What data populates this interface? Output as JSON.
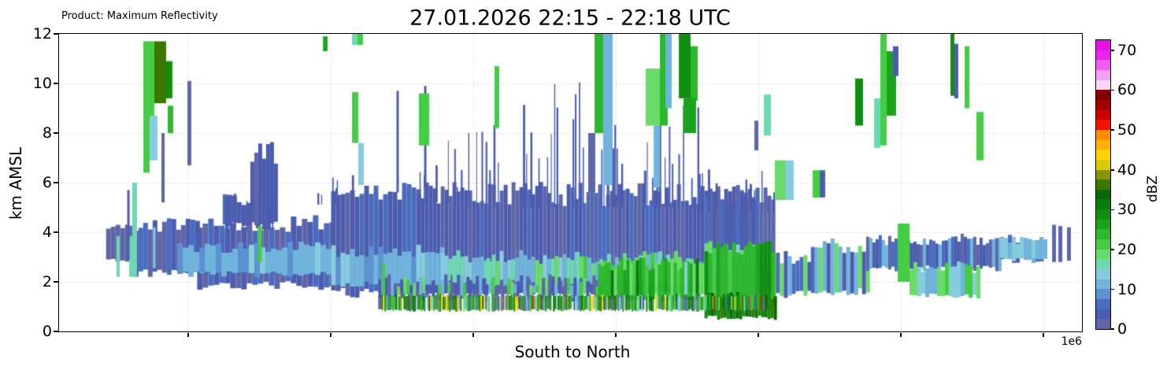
{
  "chart_data": {
    "type": "heatmap",
    "product": "Product: Maximum Reflectivity",
    "title": "27.01.2026 22:15 - 22:18 UTC",
    "xlabel": "South to North",
    "ylabel": "km AMSL",
    "x_offset_label": "1e6",
    "ylim": [
      0,
      12
    ],
    "yticks": [
      0,
      2,
      4,
      6,
      8,
      10,
      12
    ],
    "ygrid": [
      2,
      4,
      6,
      8,
      10
    ],
    "x_gridlines": [
      0.1263,
      0.2656,
      0.4049,
      0.5443,
      0.6836,
      0.8229,
      0.9623
    ],
    "grid_color": "#c9c9c9",
    "seed": 20260127,
    "colorbar": {
      "label": "dBZ",
      "ticks": [
        0,
        10,
        20,
        30,
        40,
        50,
        60,
        70
      ],
      "vmin": 0,
      "vmax": 72.5,
      "step": 2.5,
      "colors": [
        "#5e66a8",
        "#4c5cae",
        "#4a6cbe",
        "#5c92d0",
        "#70b4dc",
        "#86ccde",
        "#6ed8b2",
        "#6ada6a",
        "#44cc44",
        "#2cb82c",
        "#1ca41c",
        "#108e10",
        "#0a7c0a",
        "#066806",
        "#3c7800",
        "#8a9400",
        "#d8cc00",
        "#ffd200",
        "#ffb000",
        "#ff8c00",
        "#ee1400",
        "#cc0000",
        "#a40000",
        "#840000",
        "#fad6fa",
        "#f8a0f8",
        "#f25af2",
        "#ee22ee",
        "#e810e8"
      ]
    },
    "field": {
      "layers": [
        {
          "x0": 0.046,
          "x1": 0.073,
          "b": 2.85,
          "t": 4.25,
          "j": 0.15,
          "w": 6,
          "dbz": 2
        },
        {
          "x0": 0.073,
          "x1": 0.135,
          "b": 2.35,
          "t": 4.3,
          "j": 0.3,
          "w": 6,
          "dbz": 4,
          "mix": [
            [
              2,
              0.35
            ],
            [
              4,
              0.45
            ],
            [
              6,
              0.2
            ]
          ]
        },
        {
          "x0": 0.135,
          "x1": 0.266,
          "b": 1.85,
          "t": 4.35,
          "j": 0.35,
          "w": 7,
          "dbz": 4,
          "mix": [
            [
              2,
              0.3
            ],
            [
              4,
              0.4
            ],
            [
              6,
              0.3
            ]
          ]
        },
        {
          "x0": 0.16,
          "x1": 0.196,
          "b": 4.3,
          "t": 5.35,
          "j": 0.3,
          "w": 6,
          "dbz": 4,
          "mix": [
            [
              4,
              0.6
            ],
            [
              6,
              0.4
            ]
          ]
        },
        {
          "x0": 0.187,
          "x1": 0.213,
          "b": 4.3,
          "t": 7.15,
          "j": 0.5,
          "w": 5,
          "dbz": 4,
          "mix": [
            [
              4,
              0.7
            ],
            [
              2,
              0.3
            ]
          ]
        },
        {
          "x0": 0.266,
          "x1": 0.35,
          "b": 1.55,
          "t": 5.6,
          "j": 0.4,
          "w": 6,
          "dbz": 4,
          "mix": [
            [
              2,
              0.25
            ],
            [
              4,
              0.45
            ],
            [
              6,
              0.3
            ]
          ]
        },
        {
          "x0": 0.35,
          "x1": 0.697,
          "b": 1.45,
          "t": 5.55,
          "j": 0.5,
          "w": 5,
          "dbz": 4,
          "mix": [
            [
              2,
              0.3
            ],
            [
              4,
              0.45
            ],
            [
              6,
              0.25
            ]
          ]
        },
        {
          "x0": 0.631,
          "x1": 0.681,
          "b": 3.4,
          "t": 5.6,
          "j": 0.4,
          "w": 5,
          "dbz": 4,
          "mix": [
            [
              2,
              0.3
            ],
            [
              4,
              0.5
            ],
            [
              6,
              0.2
            ]
          ]
        },
        {
          "x0": 0.697,
          "x1": 0.735,
          "b": 1.5,
          "t": 2.95,
          "j": 0.3,
          "w": 5,
          "dbz": 6,
          "mix": [
            [
              4,
              0.3
            ],
            [
              6,
              0.25
            ],
            [
              11,
              0.25
            ],
            [
              19,
              0.2
            ]
          ]
        },
        {
          "x0": 0.735,
          "x1": 0.789,
          "b": 1.6,
          "t": 3.45,
          "j": 0.3,
          "w": 5,
          "dbz": 6,
          "mix": [
            [
              4,
              0.35
            ],
            [
              6,
              0.15
            ],
            [
              11,
              0.25
            ],
            [
              19,
              0.25
            ]
          ]
        },
        {
          "x0": 0.789,
          "x1": 0.92,
          "b": 2.55,
          "t": 3.7,
          "j": 0.25,
          "w": 4,
          "dbz": 4,
          "mix": [
            [
              2,
              0.25
            ],
            [
              4,
              0.35
            ],
            [
              6,
              0.15
            ],
            [
              11,
              0.25
            ]
          ]
        },
        {
          "x0": 0.92,
          "x1": 0.966,
          "b": 2.85,
          "t": 3.7,
          "j": 0.2,
          "w": 5,
          "dbz": 11,
          "mix": [
            [
              4,
              0.3
            ],
            [
              6,
              0.2
            ],
            [
              11,
              0.5
            ]
          ]
        },
        {
          "x0": 0.1155,
          "x1": 0.266,
          "b": 2.3,
          "t": 3.4,
          "j": 0.25,
          "w": 7,
          "dbz": 11,
          "mix": [
            [
              9,
              0.35
            ],
            [
              11,
              0.5
            ],
            [
              13,
              0.15
            ]
          ]
        },
        {
          "x0": 0.266,
          "x1": 0.373,
          "b": 1.9,
          "t": 3.25,
          "j": 0.25,
          "w": 6,
          "dbz": 11,
          "mix": [
            [
              9,
              0.3
            ],
            [
              11,
              0.45
            ],
            [
              13,
              0.25
            ]
          ]
        },
        {
          "x0": 0.373,
          "x1": 0.505,
          "b": 1.95,
          "t": 3.0,
          "j": 0.3,
          "w": 5,
          "dbz": 11,
          "mix": [
            [
              11,
              0.35
            ],
            [
              13,
              0.25
            ],
            [
              16,
              0.2
            ],
            [
              19,
              0.2
            ]
          ]
        },
        {
          "x0": 0.505,
          "x1": 0.631,
          "b": 2.0,
          "t": 2.95,
          "j": 0.3,
          "w": 5,
          "dbz": 19,
          "mix": [
            [
              19,
              0.35
            ],
            [
              21,
              0.25
            ],
            [
              16,
              0.2
            ],
            [
              11,
              0.2
            ]
          ]
        },
        {
          "x0": 0.631,
          "x1": 0.697,
          "b": 2.6,
          "t": 3.4,
          "j": 0.25,
          "w": 5,
          "dbz": 13,
          "mix": [
            [
              11,
              0.3
            ],
            [
              13,
              0.3
            ],
            [
              19,
              0.4
            ]
          ]
        },
        {
          "x0": 0.92,
          "x1": 0.9623,
          "b": 2.9,
          "t": 3.65,
          "j": 0.2,
          "w": 5,
          "dbz": 12,
          "mix": [
            [
              11,
              0.5
            ],
            [
              13,
              0.5
            ]
          ]
        },
        {
          "x0": 0.312,
          "x1": 0.527,
          "b": 1.45,
          "t": 2.05,
          "j": 0.25,
          "w": 4,
          "dbz": 4,
          "mix": [
            [
              4,
              0.3
            ],
            [
              2,
              0.2
            ],
            [
              21,
              0.2
            ],
            [
              19,
              0.15
            ],
            [
              11,
              0.15
            ]
          ]
        },
        {
          "x0": 0.527,
          "x1": 0.631,
          "b": 1.35,
          "t": 2.75,
          "j": 0.3,
          "w": 4,
          "dbz": 23,
          "mix": [
            [
              21,
              0.25
            ],
            [
              23,
              0.3
            ],
            [
              26,
              0.2
            ],
            [
              19,
              0.15
            ],
            [
              31,
              0.1
            ]
          ]
        },
        {
          "x0": 0.631,
          "x1": 0.7,
          "b": 1.0,
          "t": 3.4,
          "j": 0.3,
          "w": 5,
          "dbz": 23,
          "mix": [
            [
              23,
              0.35
            ],
            [
              26,
              0.25
            ],
            [
              29,
              0.2
            ],
            [
              21,
              0.2
            ]
          ]
        },
        {
          "x0": 0.631,
          "x1": 0.7,
          "b": 0.55,
          "t": 1.4,
          "j": 0.2,
          "w": 4,
          "dbz": 31,
          "mix": [
            [
              29,
              0.28
            ],
            [
              31,
              0.25
            ],
            [
              33,
              0.2
            ],
            [
              36,
              0.1
            ],
            [
              16,
              0.05
            ],
            [
              43,
              0.04
            ],
            [
              11,
              0.08
            ]
          ]
        },
        {
          "x0": 0.8314,
          "x1": 0.897,
          "b": 1.4,
          "t": 2.6,
          "j": 0.25,
          "w": 5,
          "dbz": 19,
          "mix": [
            [
              19,
              0.3
            ],
            [
              21,
              0.25
            ],
            [
              13,
              0.25
            ],
            [
              11,
              0.2
            ]
          ]
        }
      ],
      "bright_band": {
        "x0": 0.312,
        "x1": 0.693,
        "b": 0.85,
        "t": 1.45,
        "gap": 0.05,
        "mix": [
          [
            29,
            0.13
          ],
          [
            31,
            0.1
          ],
          [
            26,
            0.11
          ],
          [
            23,
            0.09
          ],
          [
            21,
            0.07
          ],
          [
            19,
            0.05
          ],
          [
            33,
            0.06
          ],
          [
            36,
            0.05
          ],
          [
            2,
            0.07
          ],
          [
            4,
            0.05
          ],
          [
            11,
            0.05
          ],
          [
            13,
            0.03
          ],
          [
            16,
            0.02
          ],
          [
            6,
            0.03
          ],
          [
            43,
            0.035
          ],
          [
            46,
            0.022
          ],
          [
            51,
            0.013
          ],
          [
            39,
            0.02
          ]
        ]
      },
      "spikes": [
        {
          "x0": 0.16,
          "x1": 0.213,
          "b": 4.3,
          "t0": 4.6,
          "t1": 6.2,
          "d": 0.25,
          "dbz": 4
        },
        {
          "x0": 0.2463,
          "x1": 0.3,
          "b": 5.3,
          "t0": 5.5,
          "t1": 6.5,
          "d": 0.3,
          "dbz": 4
        },
        {
          "x0": 0.35,
          "x1": 0.4,
          "b": 5.4,
          "t0": 5.6,
          "t1": 8.2,
          "d": 0.35,
          "dbz": 4
        },
        {
          "x0": 0.4,
          "x1": 0.484,
          "b": 5.2,
          "t0": 6.3,
          "t1": 9.6,
          "d": 0.55,
          "dbz": 4
        },
        {
          "x0": 0.484,
          "x1": 0.545,
          "b": 5.2,
          "t0": 6.8,
          "t1": 10.3,
          "d": 0.6,
          "dbz": 4
        },
        {
          "x0": 0.545,
          "x1": 0.625,
          "b": 5.2,
          "t0": 5.8,
          "t1": 9.6,
          "d": 0.45,
          "dbz": 4
        },
        {
          "x0": 0.625,
          "x1": 0.672,
          "b": 5.0,
          "t0": 5.3,
          "t1": 7.1,
          "d": 0.35,
          "dbz": 4
        },
        {
          "x0": 0.672,
          "x1": 0.7,
          "b": 5.0,
          "t0": 5.4,
          "t1": 6.9,
          "d": 0.35,
          "dbz": 4
        }
      ],
      "streaks": [
        [
          0.0577,
          2.2,
          3.85,
          4,
          16
        ],
        [
          0.07,
          2.2,
          3.85,
          4,
          16
        ],
        [
          0.0931,
          2.55,
          4.2,
          3,
          13
        ],
        [
          0.1963,
          2.8,
          4.25,
          5,
          21
        ],
        [
          0.3172,
          1.5,
          2.75,
          4,
          21
        ],
        [
          0.331,
          5.6,
          9.7,
          3,
          4
        ],
        [
          0.358,
          5.8,
          9.9,
          3,
          4
        ],
        [
          0.0678,
          2.9,
          5.7,
          3,
          4
        ],
        [
          0.3865,
          2.0,
          2.95,
          5,
          16
        ],
        [
          0.4196,
          1.9,
          2.95,
          5,
          16
        ],
        [
          0.535,
          1.4,
          2.75,
          5,
          23
        ],
        [
          0.6128,
          1.5,
          2.8,
          4,
          13
        ]
      ],
      "cells": [
        [
          0.0824,
          0.0931,
          8.6,
          11.7,
          21
        ],
        [
          0.0931,
          0.1047,
          9.2,
          11.7,
          36
        ],
        [
          0.1047,
          0.1108,
          9.4,
          10.9,
          29
        ],
        [
          0.1062,
          0.1116,
          8.0,
          9.1,
          23
        ],
        [
          0.0885,
          0.0962,
          6.9,
          8.7,
          13
        ],
        [
          0.0824,
          0.0885,
          6.4,
          8.7,
          21
        ],
        [
          0.0716,
          0.0762,
          2.2,
          6.0,
          16
        ],
        [
          0.1001,
          0.1032,
          5.2,
          8.0,
          2
        ],
        [
          0.1255,
          0.1293,
          6.7,
          10.1,
          2
        ],
        [
          0.258,
          0.2625,
          11.3,
          11.9,
          26
        ],
        [
          0.2864,
          0.2918,
          11.55,
          12.2,
          16
        ],
        [
          0.2918,
          0.2971,
          11.55,
          12.2,
          21
        ],
        [
          0.2864,
          0.2925,
          7.6,
          9.65,
          21
        ],
        [
          0.2925,
          0.2979,
          5.9,
          7.6,
          13
        ],
        [
          0.3518,
          0.3618,
          7.5,
          9.6,
          21
        ],
        [
          0.4257,
          0.4303,
          8.2,
          10.7,
          21
        ],
        [
          0.5235,
          0.5319,
          8.0,
          12.2,
          23
        ],
        [
          0.5319,
          0.5412,
          5.9,
          12.2,
          11
        ],
        [
          0.5173,
          0.5242,
          5.6,
          8.0,
          2
        ],
        [
          0.5735,
          0.5874,
          8.3,
          10.6,
          19
        ],
        [
          0.5874,
          0.5951,
          8.3,
          12.2,
          23
        ],
        [
          0.5928,
          0.5989,
          9.0,
          12.2,
          11
        ],
        [
          0.5813,
          0.5874,
          5.8,
          8.3,
          11
        ],
        [
          0.6059,
          0.6174,
          9.4,
          12.2,
          29
        ],
        [
          0.6174,
          0.6244,
          9.3,
          11.5,
          23
        ],
        [
          0.6105,
          0.6228,
          8.0,
          9.4,
          26
        ],
        [
          0.6798,
          0.6836,
          7.3,
          8.5,
          2
        ],
        [
          0.689,
          0.6959,
          7.9,
          9.55,
          16
        ],
        [
          0.6998,
          0.7106,
          5.3,
          6.9,
          19
        ],
        [
          0.7106,
          0.7183,
          5.3,
          6.9,
          13
        ],
        [
          0.7367,
          0.7437,
          5.4,
          6.5,
          21
        ],
        [
          0.7437,
          0.749,
          5.4,
          6.5,
          4
        ],
        [
          0.7783,
          0.786,
          8.3,
          10.2,
          29
        ],
        [
          0.7968,
          0.8029,
          7.4,
          9.4,
          16
        ],
        [
          0.8029,
          0.8091,
          7.5,
          12.2,
          21
        ],
        [
          0.8091,
          0.8183,
          8.7,
          11.3,
          26
        ],
        [
          0.8153,
          0.8206,
          10.3,
          11.5,
          4
        ],
        [
          0.8199,
          0.8314,
          2.0,
          4.35,
          21
        ],
        [
          0.8714,
          0.8753,
          9.5,
          12.2,
          29
        ],
        [
          0.8753,
          0.8791,
          9.4,
          11.6,
          4
        ],
        [
          0.8853,
          0.8899,
          9.0,
          11.5,
          21
        ],
        [
          0.8968,
          0.9038,
          6.9,
          8.85,
          21
        ],
        [
          0.9708,
          0.9746,
          2.8,
          4.3,
          2
        ],
        [
          0.9769,
          0.9808,
          2.8,
          4.25,
          2
        ],
        [
          0.9854,
          0.9892,
          2.85,
          4.2,
          2
        ]
      ]
    }
  }
}
